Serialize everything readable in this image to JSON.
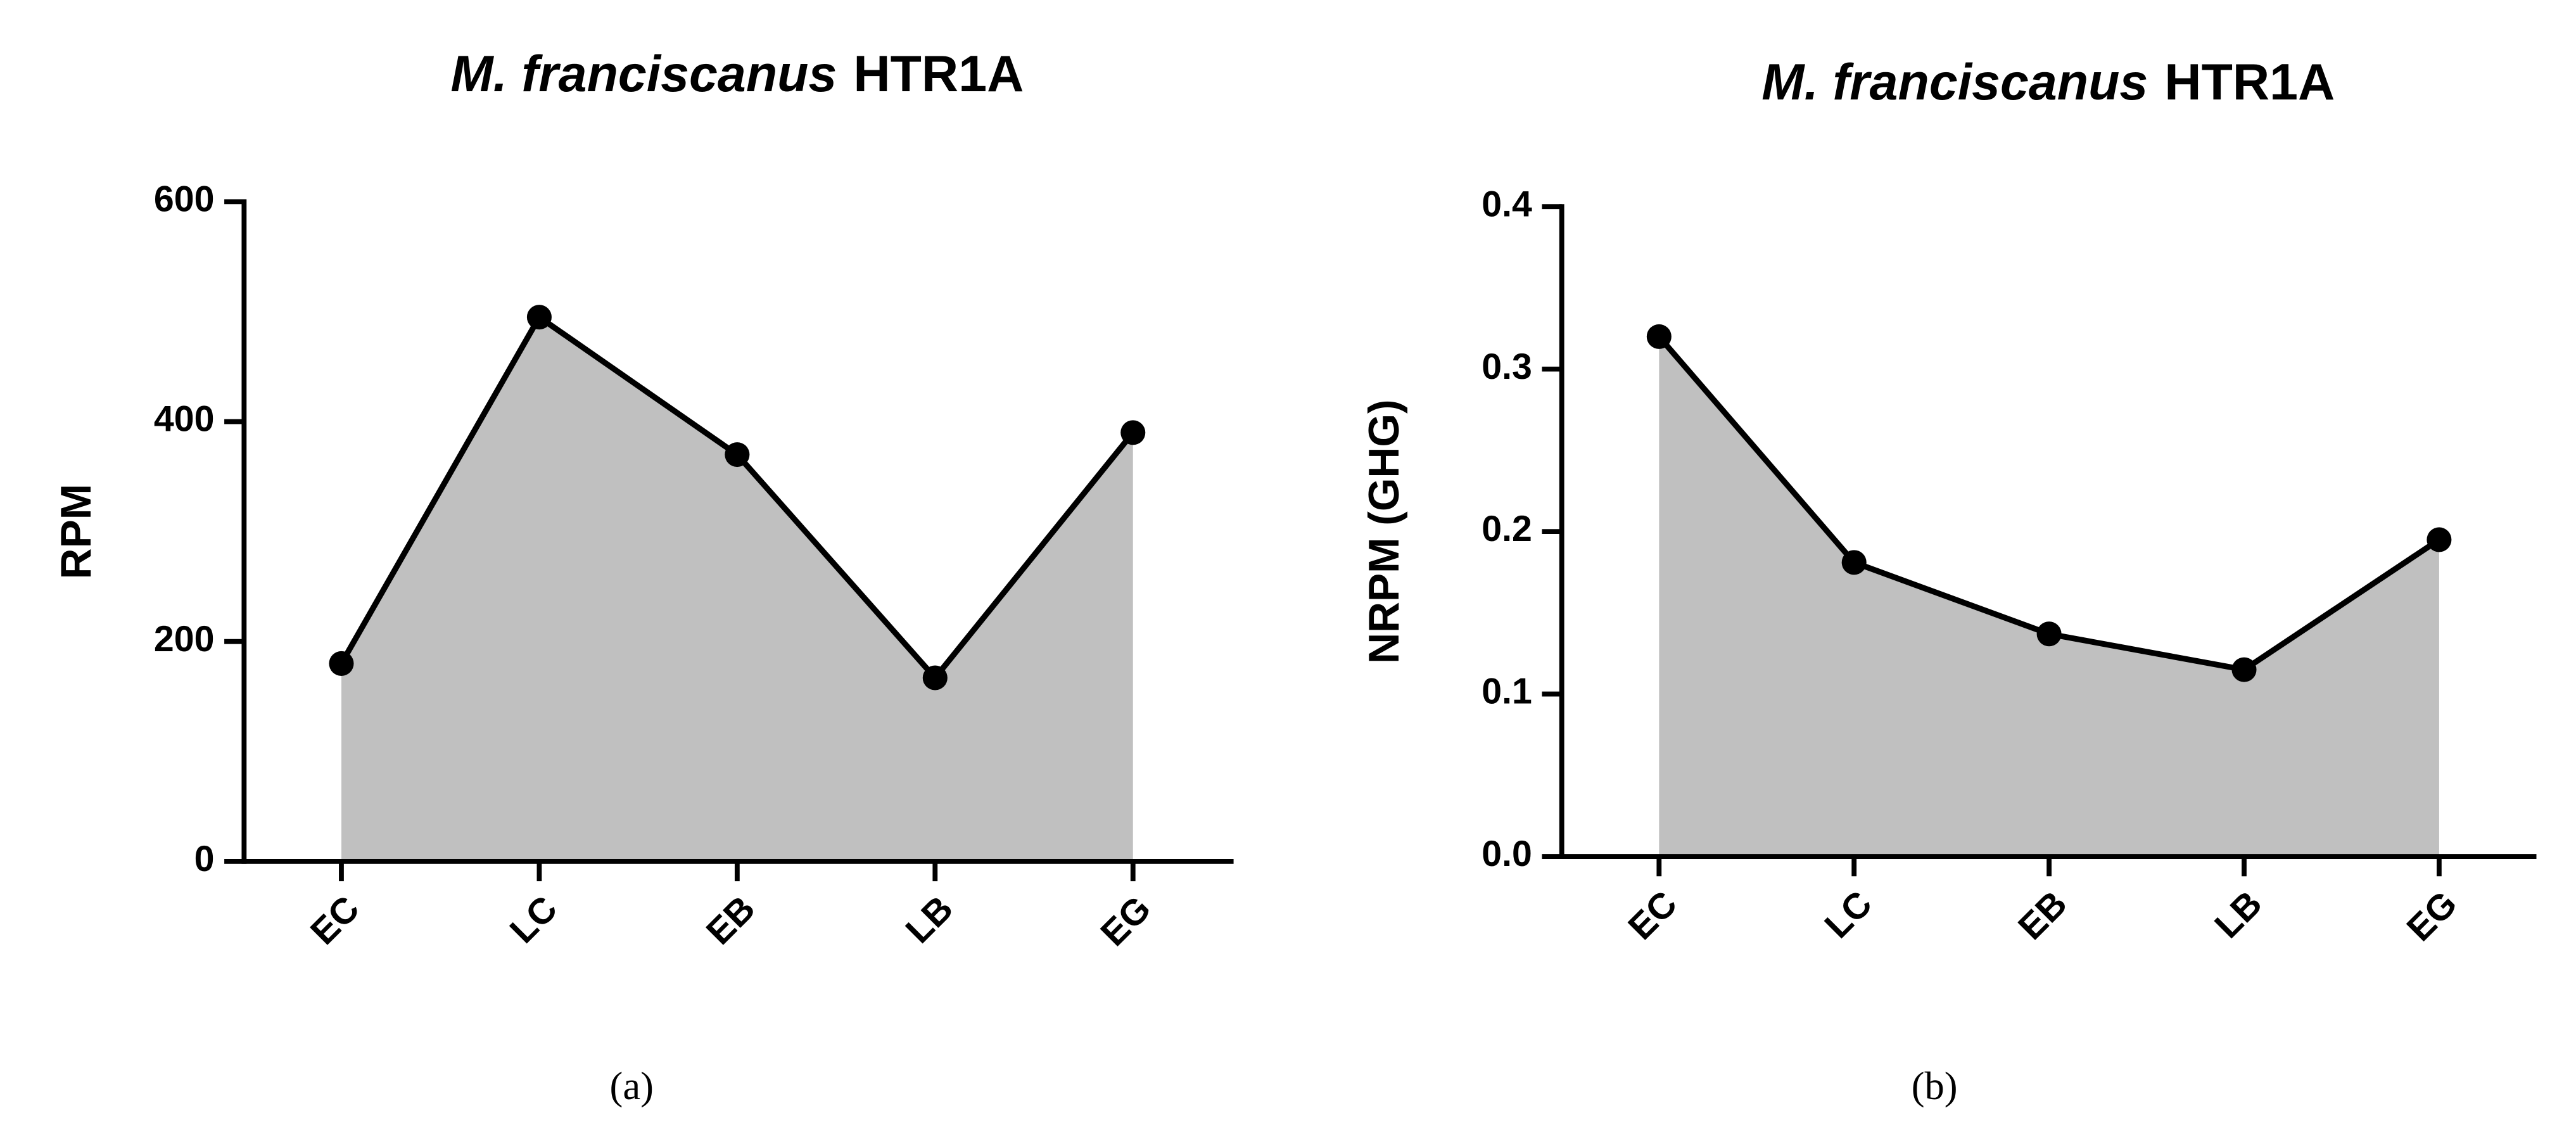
{
  "chart_data": [
    {
      "type": "line",
      "title": [
        "M. franciscanus",
        "HTR1A"
      ],
      "ylabel": "RPM",
      "caption": "(a)",
      "categories": [
        "EC",
        "LC",
        "EB",
        "LB",
        "EG"
      ],
      "values": [
        180,
        495,
        370,
        167,
        390
      ],
      "color": "#000000",
      "fill": "#c0c0c0",
      "ylim": [
        0,
        600
      ],
      "yticks": [
        0,
        200,
        400,
        600
      ]
    },
    {
      "type": "line",
      "title": [
        "M. franciscanus",
        "HTR1A"
      ],
      "ylabel": "NRPM (GHG)",
      "caption": "(b)",
      "categories": [
        "EC",
        "LC",
        "EB",
        "LB",
        "EG"
      ],
      "values": [
        0.32,
        0.181,
        0.137,
        0.115,
        0.195
      ],
      "color": "#000000",
      "fill": "#c0c0c0",
      "ylim": [
        0,
        0.4
      ],
      "yticks": [
        {
          "value": 0,
          "label": "0.0"
        },
        0.1,
        0.2,
        0.3,
        0.4
      ]
    }
  ]
}
